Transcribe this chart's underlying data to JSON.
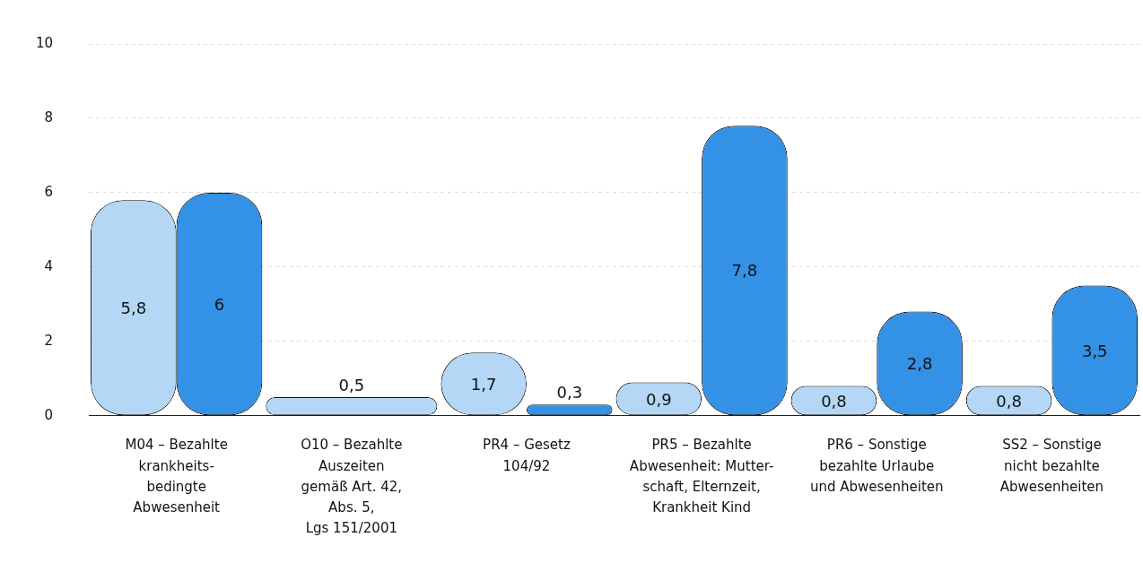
{
  "chart_data": {
    "type": "bar",
    "categories": [
      "M04 – Bezahlte\nkrankheits-\nbedingte\nAbwesenheit",
      "O10 – Bezahlte\nAuszeiten\ngemäß Art. 42,\nAbs. 5,\nLgs 151/2001",
      "PR4 – Gesetz\n104/92",
      "PR5 – Bezahlte\nAbwesenheit: Mutter-\nschaft, Elternzeit,\nKrankheit Kind",
      "PR6 – Sonstige\nbezahlte Urlaube\nund Abwesenheiten",
      "SS2 – Sonstige\nnicht bezahlte\nAbwesenheiten"
    ],
    "series": [
      {
        "color": "#b3d7f5",
        "values": [
          5.8,
          0.5,
          1.7,
          0.9,
          0.8,
          0.8
        ],
        "value_labels": [
          "5,8",
          "0,5",
          "1,7",
          "0,9",
          "0,8",
          "0,8"
        ]
      },
      {
        "color": "#3391e6",
        "values": [
          6,
          null,
          0.3,
          7.8,
          2.8,
          3.5
        ],
        "value_labels": [
          "6",
          null,
          "0,3",
          "7,8",
          "2,8",
          "3,5"
        ]
      }
    ],
    "ylim": [
      0,
      10
    ],
    "yticks": [
      0,
      2,
      4,
      6,
      8,
      10
    ],
    "grid": "y",
    "legend": false
  }
}
